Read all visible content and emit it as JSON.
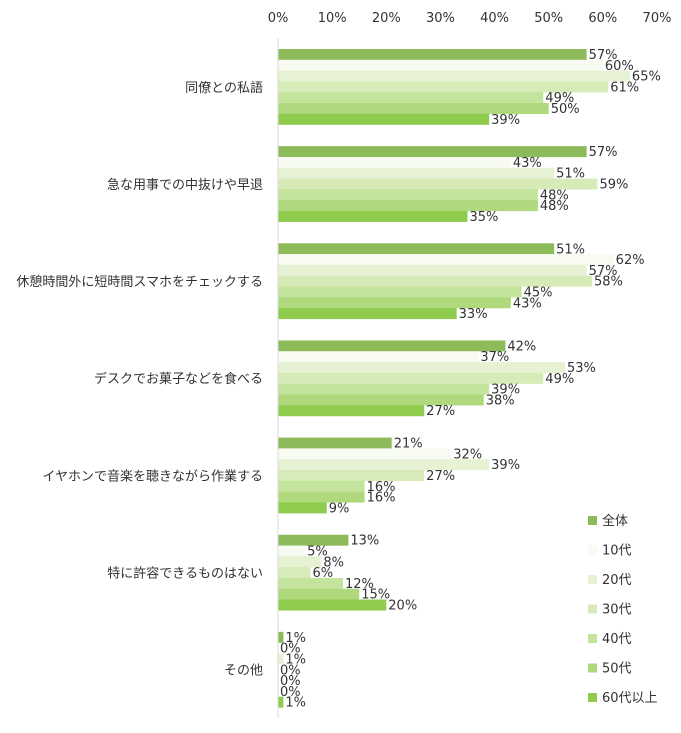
{
  "chart_data": {
    "type": "bar",
    "orientation": "horizontal",
    "categories": [
      "同僚との私語",
      "急な用事での中抜けや早退",
      "休憩時間外に短時間スマホをチェックする",
      "デスクでお菓子などを食べる",
      "イヤホンで音楽を聴きながら作業する",
      "特に許容できるものはない",
      "その他"
    ],
    "series": [
      {
        "name": "全体",
        "color": "#8dbb5a",
        "values": [
          57,
          57,
          51,
          42,
          21,
          13,
          1
        ]
      },
      {
        "name": "10代",
        "color": "#f7fbf1",
        "values": [
          60,
          43,
          62,
          37,
          32,
          5,
          0
        ]
      },
      {
        "name": "20代",
        "color": "#e6f2d3",
        "values": [
          65,
          51,
          57,
          53,
          39,
          8,
          1
        ]
      },
      {
        "name": "30代",
        "color": "#d6ebb8",
        "values": [
          61,
          59,
          58,
          49,
          27,
          6,
          0
        ]
      },
      {
        "name": "40代",
        "color": "#c4e39c",
        "values": [
          49,
          48,
          45,
          39,
          16,
          12,
          0
        ]
      },
      {
        "name": "50代",
        "color": "#afd97c",
        "values": [
          50,
          48,
          43,
          38,
          16,
          15,
          0
        ]
      },
      {
        "name": "60代以上",
        "color": "#8fcc4e",
        "values": [
          39,
          35,
          33,
          27,
          9,
          20,
          1
        ]
      }
    ],
    "xlim": [
      0,
      70
    ],
    "xticks": [
      "0%",
      "10%",
      "20%",
      "30%",
      "40%",
      "50%",
      "60%",
      "70%"
    ],
    "value_suffix": "%",
    "legend_position": "bottom-right",
    "grid": false
  }
}
